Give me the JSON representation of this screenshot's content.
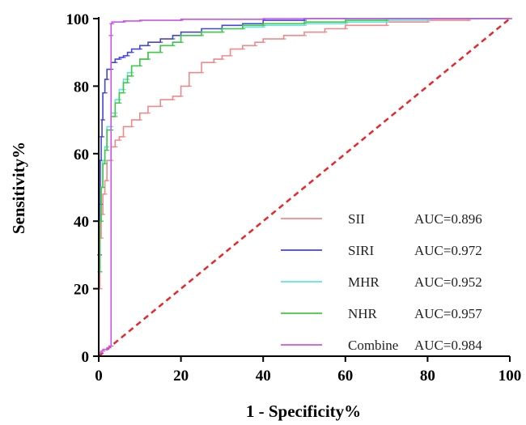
{
  "chart_data": {
    "type": "line",
    "title": "",
    "xlabel": "1 - Specificity%",
    "ylabel": "Sensitivity%",
    "xlim": [
      0,
      100
    ],
    "ylim": [
      0,
      100
    ],
    "xticks": [
      "0",
      "20",
      "40",
      "60",
      "80",
      "100"
    ],
    "yticks": [
      "0",
      "20",
      "40",
      "60",
      "80",
      "100"
    ],
    "grid": false,
    "legend_position": "bottom-right",
    "reference_line": {
      "x": [
        0,
        100
      ],
      "y": [
        0,
        100
      ],
      "color": "#e8262b",
      "style": "dashed"
    },
    "series": [
      {
        "name": "SII",
        "auc_label": "AUC=0.896",
        "color": "#f08a8a",
        "x": [
          0,
          0.3,
          0.6,
          1,
          1.5,
          2,
          3,
          4,
          5,
          6,
          8,
          10,
          12,
          15,
          18,
          20,
          22,
          25,
          28,
          30,
          32,
          35,
          38,
          40,
          45,
          50,
          55,
          60,
          70,
          80,
          90,
          95,
          100
        ],
        "y": [
          0,
          20,
          35,
          42,
          48,
          52,
          58,
          62,
          64,
          65,
          68,
          70,
          72,
          74,
          76,
          77,
          80,
          84,
          87,
          88,
          89,
          91,
          92,
          93,
          94,
          95,
          96,
          97,
          98,
          99,
          99.5,
          100,
          100
        ]
      },
      {
        "name": "SIRI",
        "auc_label": "AUC=0.972",
        "color": "#4545d6",
        "x": [
          0,
          0.2,
          0.4,
          0.6,
          0.8,
          1,
          1.5,
          2,
          3,
          4,
          5,
          6,
          7,
          8,
          10,
          12,
          15,
          18,
          20,
          25,
          30,
          35,
          40,
          50,
          60,
          70,
          80,
          90,
          100
        ],
        "y": [
          0,
          30,
          45,
          58,
          65,
          70,
          78,
          82,
          85,
          87,
          88,
          88.5,
          89,
          90,
          91,
          92,
          93,
          94,
          95,
          96,
          97,
          98,
          98.5,
          99.5,
          100,
          100,
          100,
          100,
          100
        ]
      },
      {
        "name": "MHR",
        "auc_label": "AUC=0.952",
        "color": "#5fe3e3",
        "x": [
          0,
          0.3,
          0.6,
          1,
          1.5,
          2,
          3,
          4,
          5,
          6,
          7,
          8,
          10,
          12,
          15,
          18,
          20,
          25,
          30,
          35,
          40,
          50,
          60,
          70,
          80,
          90,
          100
        ],
        "y": [
          0,
          25,
          40,
          50,
          58,
          62,
          68,
          72,
          76,
          79,
          82,
          84,
          86,
          88,
          90,
          92,
          93,
          95,
          96,
          97,
          97.5,
          98,
          98.5,
          99,
          99.5,
          100,
          100
        ]
      },
      {
        "name": "NHR",
        "auc_label": "AUC=0.957",
        "color": "#43c843",
        "x": [
          0,
          0.3,
          0.6,
          1,
          1.5,
          2,
          3,
          4,
          5,
          6,
          7,
          8,
          10,
          12,
          15,
          18,
          20,
          25,
          30,
          35,
          40,
          50,
          60,
          70,
          80,
          90,
          100
        ],
        "y": [
          0,
          25,
          40,
          50,
          57,
          61,
          67,
          71,
          75,
          78,
          81,
          83,
          86,
          88,
          90,
          92,
          93,
          95,
          96,
          97,
          98,
          98.5,
          99,
          99.5,
          100,
          100,
          100
        ]
      },
      {
        "name": "Combine",
        "auc_label": "AUC=0.984",
        "color": "#cc55e6",
        "x": [
          0,
          0.5,
          1,
          2,
          2.5,
          3,
          3,
          3.2,
          4,
          6,
          10,
          20,
          40,
          60,
          80,
          100
        ],
        "y": [
          0,
          1,
          1.5,
          2,
          2.5,
          3,
          95,
          98.5,
          99,
          99,
          99.3,
          99.5,
          99.8,
          100,
          100,
          100
        ]
      }
    ]
  }
}
